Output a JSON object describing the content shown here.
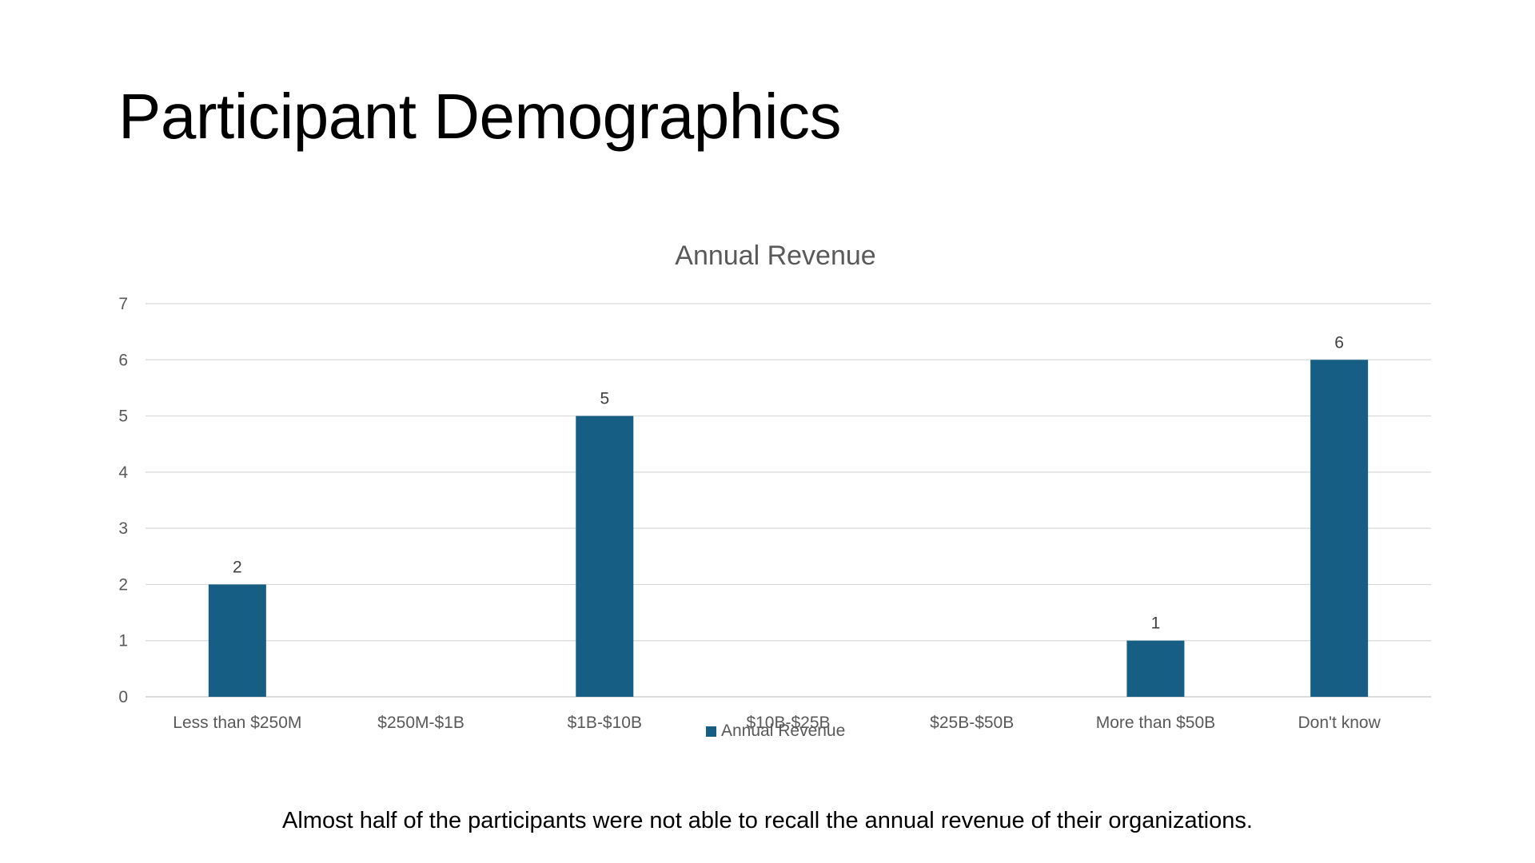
{
  "slide": {
    "title": "Participant Demographics",
    "caption": "Almost half of the participants were not able to recall the annual revenue of their organizations."
  },
  "chart_data": {
    "type": "bar",
    "title": "Annual Revenue",
    "categories": [
      "Less than $250M",
      "$250M-$1B",
      "$1B-$10B",
      "$10B-$25B",
      "$25B-$50B",
      "More than $50B",
      "Don't know"
    ],
    "series": [
      {
        "name": "Annual Revenue",
        "values": [
          2,
          0,
          5,
          0,
          0,
          1,
          6
        ],
        "data_labels": [
          "2",
          "",
          "5",
          "",
          "",
          "1",
          "6"
        ],
        "color": "#165E83"
      }
    ],
    "y_ticks": [
      "0",
      "1",
      "2",
      "3",
      "4",
      "5",
      "6",
      "7"
    ],
    "ylim": [
      0,
      7
    ],
    "grid": true,
    "legend": "bottom",
    "xlabel": "",
    "ylabel": ""
  }
}
